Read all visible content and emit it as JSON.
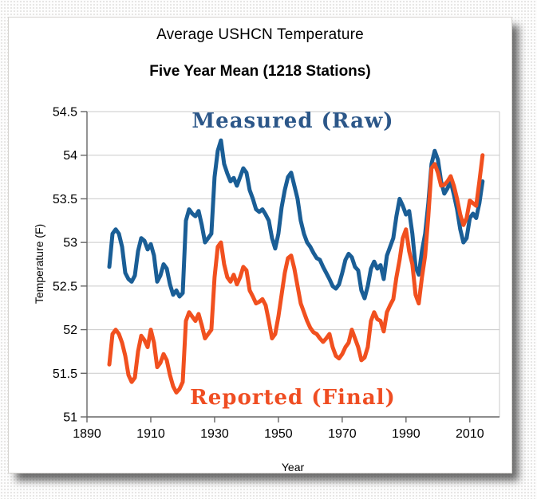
{
  "header": {
    "title": "Average USHCN Temperature",
    "subtitle": "Five Year Mean (1218 Stations)"
  },
  "colors": {
    "measured_line": "#1A5E96",
    "measured_label": "#2C5789",
    "reported_line": "#F1501F",
    "reported_label": "#EF4D22",
    "gridline": "#c9c9c9",
    "axis": "#666666",
    "tick_text": "#000000"
  },
  "chart_data": {
    "type": "line",
    "title": "Average USHCN Temperature",
    "subtitle": "Five Year Mean (1218 Stations)",
    "xlabel": "Year",
    "ylabel": "Temperature (F)",
    "xlim": [
      1890,
      2019.3
    ],
    "ylim": [
      51.0,
      54.5
    ],
    "grid": true,
    "legend_position": "inline text annotations on plot",
    "x_ticks": [
      {
        "v": 1890,
        "label": "1890"
      },
      {
        "v": 1910,
        "label": "1910"
      },
      {
        "v": 1930,
        "label": "1930"
      },
      {
        "v": 1950,
        "label": "1950"
      },
      {
        "v": 1970,
        "label": "1970"
      },
      {
        "v": 1990,
        "label": "1990"
      },
      {
        "v": 2010,
        "label": "2010"
      }
    ],
    "y_ticks": [
      {
        "v": 54.5,
        "label": "54.5"
      },
      {
        "v": 54,
        "label": "54"
      },
      {
        "v": 53.5,
        "label": "53.5"
      },
      {
        "v": 53,
        "label": "53"
      },
      {
        "v": 52.5,
        "label": "52.5"
      },
      {
        "v": 52,
        "label": "52"
      },
      {
        "v": 51.5,
        "label": "51.5"
      },
      {
        "v": 51,
        "label": "51"
      }
    ],
    "x": [
      1897,
      1898,
      1899,
      1900,
      1901,
      1902,
      1903,
      1904,
      1905,
      1906,
      1907,
      1908,
      1909,
      1910,
      1911,
      1912,
      1913,
      1914,
      1915,
      1916,
      1917,
      1918,
      1919,
      1920,
      1921,
      1922,
      1923,
      1924,
      1925,
      1926,
      1927,
      1928,
      1929,
      1930,
      1931,
      1932,
      1933,
      1934,
      1935,
      1936,
      1937,
      1938,
      1939,
      1940,
      1941,
      1942,
      1943,
      1944,
      1945,
      1946,
      1947,
      1948,
      1949,
      1950,
      1951,
      1952,
      1953,
      1954,
      1955,
      1956,
      1957,
      1958,
      1959,
      1960,
      1961,
      1962,
      1963,
      1964,
      1965,
      1966,
      1967,
      1968,
      1969,
      1970,
      1971,
      1972,
      1973,
      1974,
      1975,
      1976,
      1977,
      1978,
      1979,
      1980,
      1981,
      1982,
      1983,
      1984,
      1985,
      1986,
      1987,
      1988,
      1989,
      1990,
      1991,
      1992,
      1993,
      1994,
      1995,
      1996,
      1997,
      1998,
      1999,
      2000,
      2001,
      2002,
      2003,
      2004,
      2005,
      2006,
      2007,
      2008,
      2009,
      2010,
      2011,
      2012,
      2013,
      2014
    ],
    "series": [
      {
        "name": "Measured (Raw)",
        "color": "#1A5E96",
        "values": [
          52.72,
          53.1,
          53.15,
          53.1,
          52.95,
          52.65,
          52.58,
          52.55,
          52.62,
          52.9,
          53.05,
          53.02,
          52.92,
          52.98,
          52.85,
          52.55,
          52.62,
          52.75,
          52.7,
          52.52,
          52.4,
          52.45,
          52.38,
          52.42,
          53.25,
          53.38,
          53.33,
          53.3,
          53.36,
          53.2,
          53.0,
          53.05,
          53.1,
          53.75,
          54.05,
          54.17,
          53.9,
          53.79,
          53.7,
          53.74,
          53.65,
          53.75,
          53.85,
          53.8,
          53.6,
          53.5,
          53.38,
          53.35,
          53.38,
          53.32,
          53.25,
          53.05,
          52.93,
          53.1,
          53.4,
          53.6,
          53.75,
          53.8,
          53.65,
          53.5,
          53.25,
          53.1,
          53.0,
          52.95,
          52.88,
          52.82,
          52.8,
          52.72,
          52.65,
          52.58,
          52.5,
          52.47,
          52.52,
          52.65,
          52.8,
          52.87,
          52.83,
          52.72,
          52.68,
          52.45,
          52.36,
          52.5,
          52.7,
          52.78,
          52.7,
          52.74,
          52.58,
          52.85,
          52.95,
          53.05,
          53.3,
          53.5,
          53.42,
          53.32,
          53.36,
          53.1,
          52.72,
          52.63,
          52.9,
          53.1,
          53.45,
          53.9,
          54.05,
          53.95,
          53.7,
          53.56,
          53.62,
          53.7,
          53.55,
          53.38,
          53.15,
          53.0,
          53.05,
          53.28,
          53.33,
          53.28,
          53.45,
          53.7
        ]
      },
      {
        "name": "Reported (Final)",
        "color": "#F1501F",
        "values": [
          51.6,
          51.95,
          52.0,
          51.95,
          51.85,
          51.7,
          51.48,
          51.4,
          51.45,
          51.75,
          51.93,
          51.88,
          51.8,
          52.0,
          51.85,
          51.57,
          51.62,
          51.72,
          51.65,
          51.48,
          51.35,
          51.28,
          51.32,
          51.4,
          52.1,
          52.2,
          52.15,
          52.1,
          52.18,
          52.05,
          51.9,
          51.95,
          52.0,
          52.6,
          52.95,
          53.0,
          52.75,
          52.6,
          52.55,
          52.63,
          52.52,
          52.6,
          52.72,
          52.68,
          52.45,
          52.38,
          52.3,
          52.32,
          52.35,
          52.28,
          52.1,
          51.9,
          51.95,
          52.15,
          52.4,
          52.65,
          52.82,
          52.85,
          52.7,
          52.5,
          52.3,
          52.2,
          52.1,
          52.02,
          51.97,
          51.95,
          51.9,
          51.86,
          51.9,
          51.95,
          51.8,
          51.7,
          51.67,
          51.72,
          51.8,
          51.85,
          52.0,
          51.9,
          51.8,
          51.65,
          51.68,
          51.8,
          52.1,
          52.2,
          52.12,
          52.1,
          51.98,
          52.2,
          52.28,
          52.35,
          52.6,
          52.8,
          53.05,
          53.15,
          52.9,
          52.75,
          52.4,
          52.3,
          52.6,
          52.85,
          53.3,
          53.85,
          53.9,
          53.8,
          53.65,
          53.66,
          53.7,
          53.76,
          53.65,
          53.5,
          53.32,
          53.2,
          53.28,
          53.48,
          53.45,
          53.42,
          53.7,
          54.0
        ]
      }
    ]
  }
}
